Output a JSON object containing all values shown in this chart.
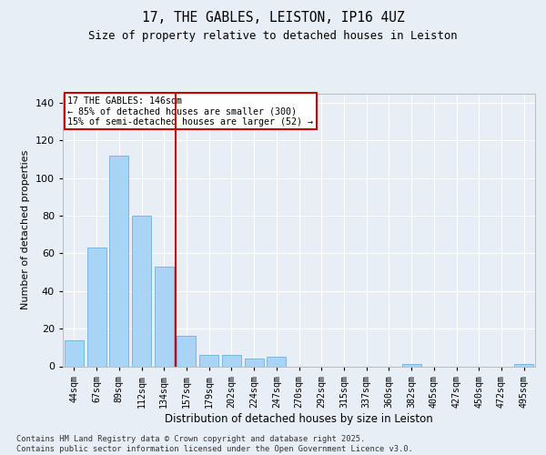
{
  "title1": "17, THE GABLES, LEISTON, IP16 4UZ",
  "title2": "Size of property relative to detached houses in Leiston",
  "xlabel": "Distribution of detached houses by size in Leiston",
  "ylabel": "Number of detached properties",
  "categories": [
    "44sqm",
    "67sqm",
    "89sqm",
    "112sqm",
    "134sqm",
    "157sqm",
    "179sqm",
    "202sqm",
    "224sqm",
    "247sqm",
    "270sqm",
    "292sqm",
    "315sqm",
    "337sqm",
    "360sqm",
    "382sqm",
    "405sqm",
    "427sqm",
    "450sqm",
    "472sqm",
    "495sqm"
  ],
  "values": [
    14,
    63,
    112,
    80,
    53,
    16,
    6,
    6,
    4,
    5,
    0,
    0,
    0,
    0,
    0,
    1,
    0,
    0,
    0,
    0,
    1
  ],
  "bar_color": "#aad4f5",
  "bar_edge_color": "#7ab8e0",
  "vline_x": 4.5,
  "vline_color": "#cc0000",
  "annotation_title": "17 THE GABLES: 146sqm",
  "annotation_line1": "← 85% of detached houses are smaller (300)",
  "annotation_line2": "15% of semi-detached houses are larger (52) →",
  "annotation_box_color": "#cc0000",
  "ylim": [
    0,
    145
  ],
  "yticks": [
    0,
    20,
    40,
    60,
    80,
    100,
    120,
    140
  ],
  "footer1": "Contains HM Land Registry data © Crown copyright and database right 2025.",
  "footer2": "Contains public sector information licensed under the Open Government Licence v3.0.",
  "bg_color": "#e8eef5",
  "plot_bg_color": "#e8eef5"
}
